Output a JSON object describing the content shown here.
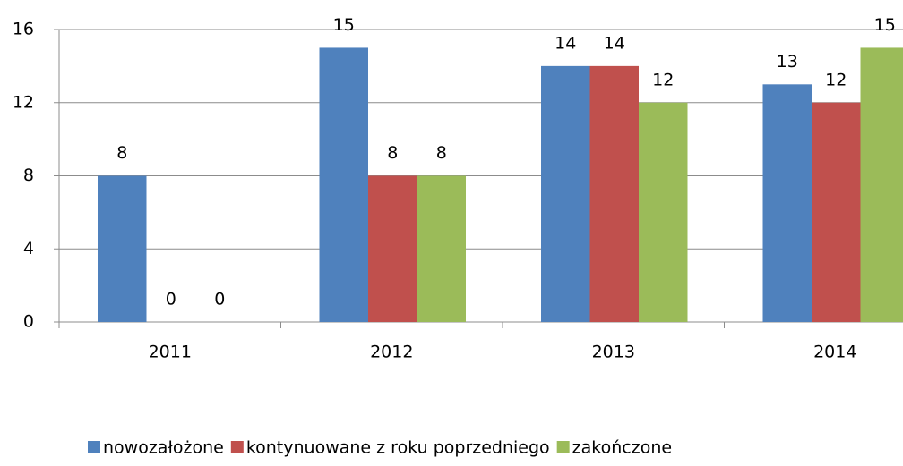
{
  "chart_data": {
    "type": "bar",
    "categories": [
      "2011",
      "2012",
      "2013",
      "2014"
    ],
    "series": [
      {
        "name": "nowozałożone",
        "color": "#4f81bd",
        "values": [
          8,
          15,
          14,
          13
        ]
      },
      {
        "name": "kontynuowane z roku poprzedniego",
        "color": "#c0504d",
        "values": [
          0,
          8,
          14,
          12
        ]
      },
      {
        "name": "zakończone",
        "color": "#9bbb59",
        "values": [
          0,
          8,
          12,
          15
        ]
      }
    ],
    "ylim": [
      0,
      16
    ],
    "yticks": [
      0,
      4,
      8,
      12,
      16
    ],
    "grid": true,
    "legend": "bottom"
  }
}
